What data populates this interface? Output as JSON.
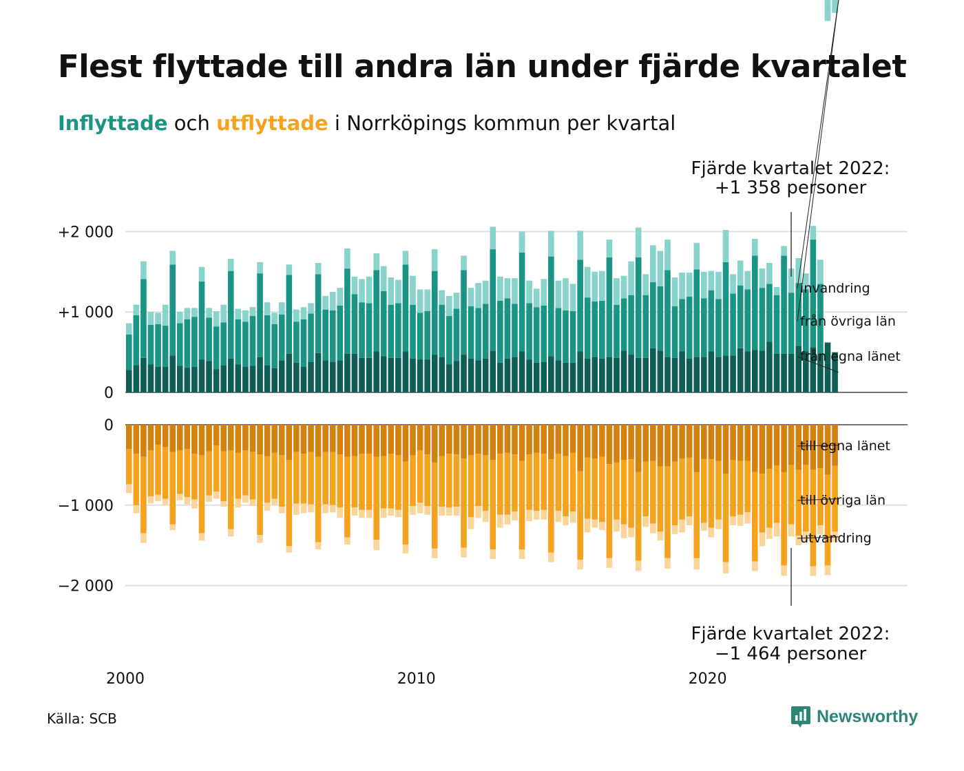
{
  "title": "Flest flyttade till andra län under fjärde kvartalet",
  "subtitle": {
    "in_word": "Inflyttade",
    "mid": " och ",
    "out_word": "utflyttade",
    "rest": " i Norrköpings kommun per kvartal"
  },
  "colors": {
    "in_own": "#0e5e55",
    "in_other": "#1a9485",
    "in_intl": "#88d3cb",
    "out_own": "#d4820f",
    "out_other": "#f5a21f",
    "out_intl": "#fad59a",
    "grid": "#e0e0e0",
    "axis": "#222222",
    "logo": "#2d8577"
  },
  "annotations": {
    "top_line1": "Fjärde kvartalet 2022:",
    "top_line2": "+1 358 personer",
    "bottom_line1": "Fjärde kvartalet 2022:",
    "bottom_line2": "−1 464 personer"
  },
  "source": "Källa: SCB",
  "logo_text": "Newsworthy",
  "logo_icon": "newsworthy-chart-icon",
  "chart_data": [
    {
      "type": "bar",
      "stacked": true,
      "x_start": "2000 Q1",
      "xticks": [
        {
          "year": 2000,
          "label": "2000"
        },
        {
          "year": 2010,
          "label": "2010"
        },
        {
          "year": 2020,
          "label": "2020"
        }
      ],
      "y_ticks": [
        {
          "v": 0,
          "label": "0"
        },
        {
          "v": 1000,
          "label": "+1 000"
        },
        {
          "v": 2000,
          "label": "+2 000"
        }
      ],
      "ylim": [
        0,
        2300
      ],
      "series": [
        {
          "name": "från egna länet",
          "values": [
            280,
            340,
            430,
            350,
            320,
            320,
            460,
            330,
            310,
            320,
            410,
            390,
            290,
            340,
            420,
            350,
            320,
            330,
            440,
            340,
            300,
            400,
            480,
            370,
            320,
            380,
            490,
            400,
            380,
            400,
            480,
            480,
            430,
            430,
            510,
            450,
            430,
            430,
            510,
            420,
            410,
            410,
            470,
            440,
            350,
            390,
            470,
            420,
            400,
            420,
            520,
            370,
            420,
            440,
            510,
            410,
            370,
            380,
            450,
            400,
            370,
            370,
            510,
            420,
            440,
            420,
            440,
            430,
            520,
            470,
            430,
            430,
            550,
            520,
            440,
            430,
            510,
            420,
            440,
            440,
            510,
            440,
            460,
            460,
            550,
            510,
            530,
            520,
            630,
            480,
            480,
            480,
            580,
            510,
            560,
            480,
            620,
            500
          ]
        },
        {
          "name": "från övriga län",
          "values": [
            440,
            620,
            980,
            490,
            530,
            510,
            1130,
            530,
            600,
            620,
            970,
            540,
            530,
            530,
            1090,
            560,
            560,
            620,
            1040,
            620,
            550,
            570,
            980,
            510,
            590,
            600,
            980,
            630,
            640,
            680,
            1060,
            740,
            690,
            680,
            1010,
            810,
            660,
            680,
            1080,
            670,
            580,
            600,
            1040,
            650,
            600,
            650,
            1050,
            650,
            650,
            680,
            1260,
            770,
            750,
            660,
            1230,
            700,
            690,
            700,
            1240,
            650,
            650,
            640,
            1140,
            760,
            690,
            720,
            1240,
            660,
            650,
            740,
            1250,
            780,
            820,
            800,
            1080,
            640,
            650,
            770,
            1090,
            730,
            760,
            720,
            1160,
            770,
            780,
            770,
            1170,
            780,
            720,
            730,
            1220,
            760,
            780,
            770,
            1340,
            870
          ]
        },
        {
          "name": "invandring",
          "values": [
            140,
            130,
            220,
            160,
            140,
            260,
            170,
            140,
            140,
            110,
            180,
            120,
            190,
            220,
            150,
            130,
            140,
            110,
            140,
            160,
            140,
            150,
            130,
            150,
            150,
            130,
            140,
            170,
            230,
            220,
            250,
            220,
            290,
            330,
            210,
            310,
            340,
            290,
            170,
            360,
            290,
            270,
            270,
            180,
            250,
            200,
            180,
            230,
            310,
            290,
            280,
            300,
            250,
            320,
            260,
            280,
            230,
            330,
            320,
            340,
            400,
            340,
            360,
            380,
            370,
            370,
            220,
            330,
            280,
            420,
            370,
            260,
            460,
            440,
            380,
            360,
            330,
            300,
            330,
            330,
            240,
            340,
            400,
            240,
            310,
            230,
            210,
            240,
            260,
            100,
            120,
            300,
            310,
            200,
            170,
            300,
            260,
            160
          ]
        }
      ]
    },
    {
      "type": "bar",
      "stacked": true,
      "x_start": "2000 Q1",
      "xticks": [
        {
          "year": 2000,
          "label": "2000"
        },
        {
          "year": 2010,
          "label": "2010"
        },
        {
          "year": 2020,
          "label": "2020"
        }
      ],
      "y_ticks": [
        {
          "v": 0,
          "label": "0"
        },
        {
          "v": -1000,
          "label": "−1 000"
        },
        {
          "v": -2000,
          "label": "−2 000"
        }
      ],
      "ylim": [
        -2300,
        0
      ],
      "series": [
        {
          "name": "till egna länet",
          "values": [
            -300,
            -360,
            -400,
            -320,
            -250,
            -280,
            -340,
            -320,
            -300,
            -360,
            -380,
            -330,
            -260,
            -330,
            -320,
            -350,
            -320,
            -340,
            -370,
            -390,
            -350,
            -380,
            -440,
            -340,
            -360,
            -340,
            -400,
            -340,
            -340,
            -370,
            -400,
            -390,
            -360,
            -360,
            -400,
            -390,
            -360,
            -380,
            -460,
            -380,
            -320,
            -370,
            -470,
            -390,
            -360,
            -370,
            -420,
            -380,
            -360,
            -380,
            -440,
            -360,
            -350,
            -370,
            -450,
            -370,
            -350,
            -360,
            -430,
            -360,
            -390,
            -350,
            -580,
            -410,
            -420,
            -400,
            -490,
            -470,
            -440,
            -430,
            -590,
            -460,
            -450,
            -520,
            -520,
            -460,
            -420,
            -410,
            -590,
            -430,
            -430,
            -450,
            -610,
            -440,
            -450,
            -450,
            -590,
            -610,
            -550,
            -510,
            -590,
            -500,
            -560,
            -500,
            -560,
            -540,
            -620,
            -510
          ]
        },
        {
          "name": "till övriga län",
          "values": [
            -440,
            -640,
            -950,
            -570,
            -620,
            -640,
            -900,
            -540,
            -600,
            -570,
            -970,
            -550,
            -570,
            -620,
            -980,
            -570,
            -560,
            -590,
            -1000,
            -580,
            -570,
            -640,
            -1070,
            -640,
            -620,
            -650,
            -1060,
            -650,
            -660,
            -660,
            -1000,
            -640,
            -700,
            -700,
            -1030,
            -650,
            -680,
            -680,
            -1030,
            -630,
            -650,
            -640,
            -1070,
            -630,
            -670,
            -650,
            -1110,
            -770,
            -650,
            -690,
            -1110,
            -760,
            -770,
            -710,
            -1100,
            -690,
            -720,
            -700,
            -1160,
            -710,
            -750,
            -730,
            -1100,
            -760,
            -760,
            -810,
            -1170,
            -710,
            -800,
            -850,
            -1100,
            -680,
            -780,
            -810,
            -1140,
            -790,
            -760,
            -730,
            -1070,
            -790,
            -850,
            -730,
            -1100,
            -700,
            -670,
            -640,
            -1110,
            -730,
            -730,
            -710,
            -1160,
            -740,
            -820,
            -830,
            -1200,
            -710,
            -1130,
            -820
          ]
        },
        {
          "name": "utvandring",
          "values": [
            -110,
            -100,
            -120,
            -90,
            -80,
            -80,
            -70,
            -80,
            -90,
            -110,
            -90,
            -80,
            -90,
            -70,
            -90,
            -110,
            -90,
            -80,
            -100,
            -100,
            -80,
            -80,
            -80,
            -140,
            -120,
            -100,
            -90,
            -110,
            -90,
            -130,
            -90,
            -100,
            -100,
            -100,
            -130,
            -120,
            -90,
            -90,
            -110,
            -110,
            -130,
            -110,
            -120,
            -110,
            -100,
            -110,
            -120,
            -150,
            -150,
            -140,
            -120,
            -160,
            -120,
            -110,
            -120,
            -140,
            -110,
            -120,
            -120,
            -140,
            -110,
            -140,
            -120,
            -170,
            -100,
            -100,
            -120,
            -150,
            -170,
            -120,
            -130,
            -130,
            -120,
            -110,
            -130,
            -110,
            -160,
            -110,
            -140,
            -100,
            -120,
            -120,
            -140,
            -110,
            -140,
            -140,
            -120,
            -170,
            -140,
            -170,
            -130,
            -150,
            -120,
            -110,
            -120,
            -110,
            -120,
            -130
          ]
        }
      ]
    }
  ]
}
